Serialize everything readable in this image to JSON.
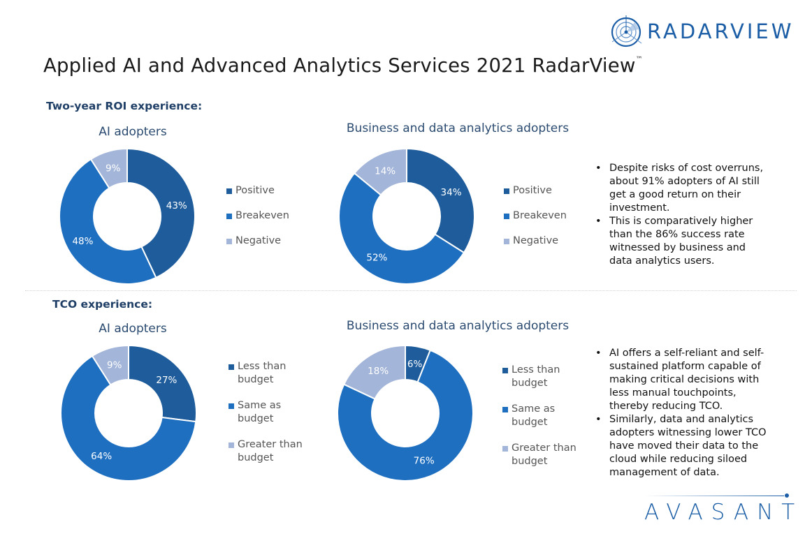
{
  "brand": {
    "radarview_logo_text": "RADARVIEW",
    "radarview_tm": "™",
    "footer_logo_text": "AVASANT"
  },
  "page": {
    "title": "Applied AI and Advanced Analytics Services 2021 RadarView",
    "title_tm": "™"
  },
  "colors": {
    "dark_blue": "#1e5c9b",
    "mid_blue": "#1f6fc0",
    "light_blue": "#a3b5d8",
    "heading": "#1f3f66"
  },
  "sections": {
    "roi": {
      "heading": "Two-year ROI experience:",
      "bullets": [
        "Despite risks of cost overruns, about 91% adopters of AI still get a good return on their investment.",
        "This is comparatively higher than the 86% success rate witnessed by business and data analytics users."
      ]
    },
    "tco": {
      "heading": "TCO experience:",
      "bullets": [
        "AI offers a self-reliant and self-sustained platform capable of making critical decisions with less manual touchpoints, thereby reducing TCO.",
        "Similarly, data and analytics adopters witnessing lower TCO have moved their data to the cloud while reducing siloed management of data."
      ]
    }
  },
  "chart_data": [
    {
      "type": "pie",
      "variant": "donut",
      "section": "Two-year ROI experience",
      "title": "AI adopters",
      "categories": [
        "Positive",
        "Breakeven",
        "Negative"
      ],
      "values": [
        43,
        48,
        9
      ],
      "labels": [
        "43%",
        "48%",
        "9%"
      ],
      "legend": "right"
    },
    {
      "type": "pie",
      "variant": "donut",
      "section": "Two-year ROI experience",
      "title": "Business and data analytics adopters",
      "categories": [
        "Positive",
        "Breakeven",
        "Negative"
      ],
      "values": [
        34,
        52,
        14
      ],
      "labels": [
        "34%",
        "52%",
        "14%"
      ],
      "legend": "right"
    },
    {
      "type": "pie",
      "variant": "donut",
      "section": "TCO experience",
      "title": "AI adopters",
      "categories": [
        "Less than budget",
        "Same as budget",
        "Greater than budget"
      ],
      "legend_lines": [
        [
          "Less than",
          "budget"
        ],
        [
          "Same as",
          "budget"
        ],
        [
          "Greater than",
          "budget"
        ]
      ],
      "values": [
        27,
        64,
        9
      ],
      "labels": [
        "27%",
        "64%",
        "9%"
      ],
      "legend": "right"
    },
    {
      "type": "pie",
      "variant": "donut",
      "section": "TCO experience",
      "title": "Business and data analytics adopters",
      "categories": [
        "Less than budget",
        "Same as budget",
        "Greater than budget"
      ],
      "legend_lines": [
        [
          "Less than",
          "budget"
        ],
        [
          "Same as",
          "budget"
        ],
        [
          "Greater than",
          "budget"
        ]
      ],
      "values": [
        6,
        76,
        18
      ],
      "labels": [
        "6%",
        "76%",
        "18%"
      ],
      "legend": "right"
    }
  ]
}
